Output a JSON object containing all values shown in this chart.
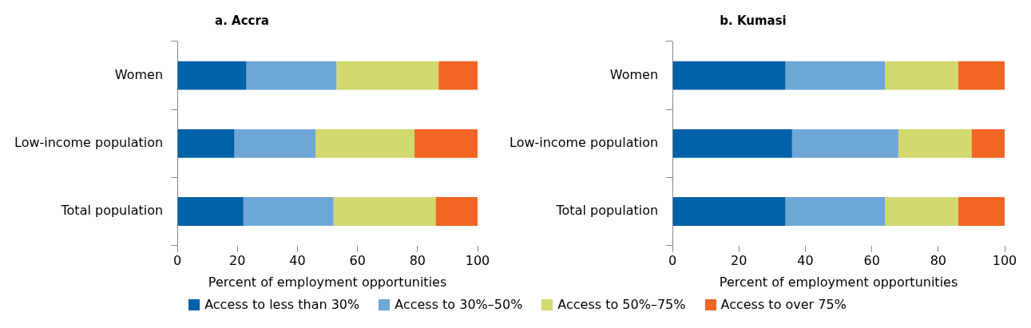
{
  "chart_data": [
    {
      "type": "bar",
      "title": "a. Accra",
      "orientation": "horizontal",
      "stacked": true,
      "categories": [
        "Women",
        "Low-income population",
        "Total population"
      ],
      "xlabel": "Percent of employment opportunities",
      "xlim": [
        0,
        100
      ],
      "xticks": [
        0,
        20,
        40,
        60,
        80,
        100
      ],
      "grid": false,
      "legend": "bottom",
      "series": [
        {
          "name": "Access to less than 30%",
          "color": "#0060a8",
          "values": [
            23,
            19,
            22
          ]
        },
        {
          "name": "Access to 30%–50%",
          "color": "#6fa6d8",
          "values": [
            30,
            27,
            30
          ]
        },
        {
          "name": "Access to 50%–75%",
          "color": "#d2d96f",
          "values": [
            34,
            33,
            34
          ]
        },
        {
          "name": "Access to over 75%",
          "color": "#f26522",
          "values": [
            13,
            21,
            14
          ]
        }
      ]
    },
    {
      "type": "bar",
      "title": "b. Kumasi",
      "orientation": "horizontal",
      "stacked": true,
      "categories": [
        "Women",
        "Low-income population",
        "Total population"
      ],
      "xlabel": "Percent of employment opportunities",
      "xlim": [
        0,
        100
      ],
      "xticks": [
        0,
        20,
        40,
        60,
        80,
        100
      ],
      "grid": false,
      "series": [
        {
          "color": "#0060a8",
          "values": [
            34,
            36,
            34
          ]
        },
        {
          "color": "#6fa6d8",
          "values": [
            30,
            32,
            30
          ]
        },
        {
          "color": "#d2d96f",
          "values": [
            22,
            22,
            22
          ]
        },
        {
          "color": "#f26522",
          "values": [
            14,
            10,
            14
          ]
        }
      ]
    }
  ]
}
